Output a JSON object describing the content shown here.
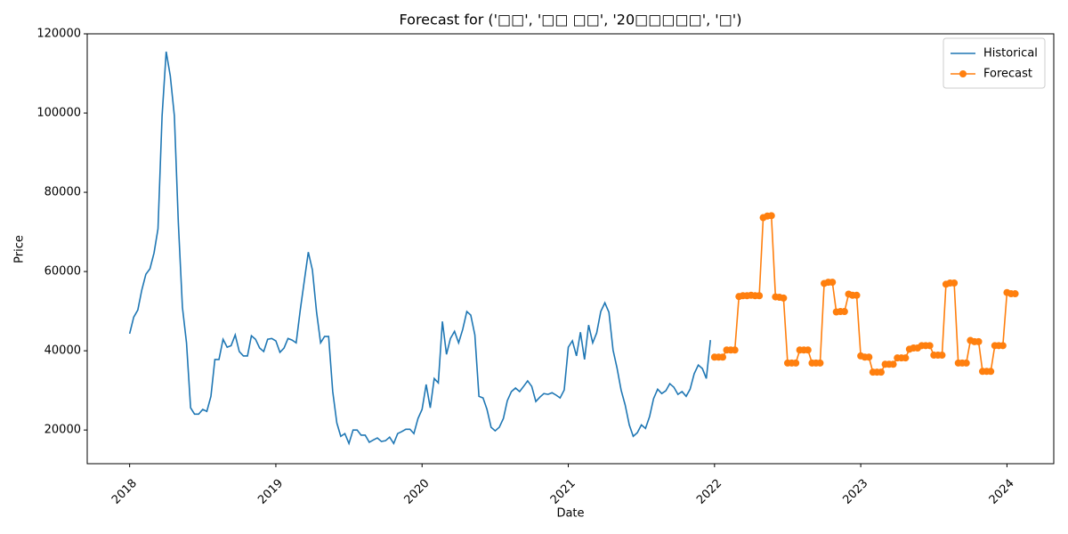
{
  "chart_data": {
    "type": "line",
    "title": "Forecast for ('□□', '□□ □□', '20□□□□□', '□')",
    "x_label": "Date",
    "y_label": "Price",
    "xlim": [
      2017.71,
      2024.32
    ],
    "xticks": [
      2018,
      2019,
      2020,
      2021,
      2022,
      2023,
      2024
    ],
    "ylim": [
      11500,
      120000
    ],
    "yticks": [
      20000,
      40000,
      60000,
      80000,
      100000,
      120000
    ],
    "grid": false,
    "legend": "upper right",
    "series": [
      {
        "name": "Historical",
        "color": "#1f77b4",
        "marker": false,
        "x": [
          2018,
          2018.028,
          2018.056,
          2018.083,
          2018.111,
          2018.139,
          2018.167,
          2018.194,
          2018.222,
          2018.25,
          2018.278,
          2018.306,
          2018.333,
          2018.361,
          2018.389,
          2018.417,
          2018.444,
          2018.472,
          2018.5,
          2018.528,
          2018.556,
          2018.583,
          2018.611,
          2018.639,
          2018.667,
          2018.694,
          2018.722,
          2018.75,
          2018.778,
          2018.806,
          2018.833,
          2018.861,
          2018.889,
          2018.917,
          2018.944,
          2018.972,
          2019,
          2019.028,
          2019.056,
          2019.083,
          2019.111,
          2019.139,
          2019.167,
          2019.194,
          2019.222,
          2019.25,
          2019.278,
          2019.306,
          2019.333,
          2019.361,
          2019.389,
          2019.417,
          2019.444,
          2019.472,
          2019.5,
          2019.528,
          2019.556,
          2019.583,
          2019.611,
          2019.639,
          2019.667,
          2019.694,
          2019.722,
          2019.75,
          2019.778,
          2019.806,
          2019.833,
          2019.861,
          2019.889,
          2019.917,
          2019.944,
          2019.972,
          2020,
          2020.028,
          2020.056,
          2020.083,
          2020.111,
          2020.139,
          2020.167,
          2020.194,
          2020.222,
          2020.25,
          2020.278,
          2020.306,
          2020.333,
          2020.361,
          2020.389,
          2020.417,
          2020.444,
          2020.472,
          2020.5,
          2020.528,
          2020.556,
          2020.583,
          2020.611,
          2020.639,
          2020.667,
          2020.694,
          2020.722,
          2020.75,
          2020.778,
          2020.806,
          2020.833,
          2020.861,
          2020.889,
          2020.917,
          2020.944,
          2020.972,
          2021,
          2021.028,
          2021.056,
          2021.083,
          2021.111,
          2021.139,
          2021.167,
          2021.194,
          2021.222,
          2021.25,
          2021.278,
          2021.306,
          2021.333,
          2021.361,
          2021.389,
          2021.417,
          2021.444,
          2021.472,
          2021.5,
          2021.528,
          2021.556,
          2021.583,
          2021.611,
          2021.639,
          2021.667,
          2021.694,
          2021.722,
          2021.75,
          2021.778,
          2021.806,
          2021.833,
          2021.861,
          2021.889,
          2021.917,
          2021.944,
          2021.972
        ],
        "values": [
          44300,
          48500,
          50300,
          55300,
          59300,
          60700,
          64700,
          70800,
          99300,
          115500,
          109400,
          99300,
          72400,
          51000,
          42000,
          25600,
          24000,
          24000,
          25200,
          24700,
          28500,
          37800,
          37800,
          42900,
          40900,
          41300,
          44000,
          39800,
          38700,
          38700,
          43800,
          42900,
          40700,
          39800,
          42900,
          43100,
          42500,
          39600,
          40700,
          43100,
          42700,
          42000,
          50300,
          57500,
          64900,
          60400,
          49900,
          42000,
          43600,
          43600,
          29700,
          21800,
          18400,
          19100,
          16600,
          20000,
          20000,
          18700,
          18700,
          16900,
          17500,
          18000,
          17100,
          17300,
          18200,
          16600,
          19100,
          19600,
          20200,
          20200,
          19100,
          22900,
          25200,
          31500,
          25600,
          33000,
          31900,
          47400,
          39100,
          43100,
          44900,
          42000,
          45400,
          49900,
          49000,
          44000,
          28500,
          28100,
          25200,
          20700,
          19800,
          20700,
          22900,
          27400,
          29700,
          30600,
          29700,
          31000,
          32400,
          31000,
          27200,
          28300,
          29200,
          29000,
          29400,
          28800,
          28100,
          30100,
          40900,
          42500,
          38700,
          44700,
          37800,
          46500,
          42000,
          44500,
          49900,
          52100,
          49700,
          40200,
          35700,
          30100,
          26300,
          21300,
          18400,
          19300,
          21300,
          20400,
          23400,
          27900,
          30300,
          29200,
          29900,
          31700,
          30800,
          29000,
          29700,
          28500,
          30300,
          34200,
          36400,
          35500,
          33000,
          42700
        ]
      },
      {
        "name": "Forecast",
        "color": "#ff7f0e",
        "marker": true,
        "x": [
          2022,
          2022.028,
          2022.056,
          2022.083,
          2022.111,
          2022.139,
          2022.167,
          2022.194,
          2022.222,
          2022.25,
          2022.278,
          2022.306,
          2022.333,
          2022.361,
          2022.389,
          2022.417,
          2022.444,
          2022.472,
          2022.5,
          2022.528,
          2022.556,
          2022.583,
          2022.611,
          2022.639,
          2022.667,
          2022.694,
          2022.722,
          2022.75,
          2022.778,
          2022.806,
          2022.833,
          2022.861,
          2022.889,
          2022.917,
          2022.944,
          2022.972,
          2023,
          2023.028,
          2023.056,
          2023.083,
          2023.111,
          2023.139,
          2023.167,
          2023.194,
          2023.222,
          2023.25,
          2023.278,
          2023.306,
          2023.333,
          2023.361,
          2023.389,
          2023.417,
          2023.444,
          2023.472,
          2023.5,
          2023.528,
          2023.556,
          2023.583,
          2023.611,
          2023.639,
          2023.667,
          2023.694,
          2023.722,
          2023.75,
          2023.778,
          2023.806,
          2023.833,
          2023.861,
          2023.889,
          2023.917,
          2023.944,
          2023.972,
          2024,
          2024.028,
          2024.056
        ],
        "values": [
          38400,
          38400,
          38400,
          40200,
          40200,
          40200,
          53700,
          53900,
          53900,
          54000,
          53900,
          53900,
          73600,
          74000,
          74100,
          53600,
          53500,
          53300,
          36900,
          36900,
          36900,
          40200,
          40200,
          40200,
          36900,
          36900,
          36900,
          57000,
          57300,
          57300,
          49800,
          49900,
          49900,
          54300,
          54000,
          54000,
          38700,
          38400,
          38400,
          34600,
          34600,
          34600,
          36600,
          36600,
          36600,
          38200,
          38200,
          38200,
          40400,
          40700,
          40700,
          41300,
          41300,
          41300,
          38900,
          38900,
          38900,
          56800,
          57100,
          57100,
          36900,
          36900,
          36900,
          42600,
          42300,
          42300,
          34800,
          34800,
          34800,
          41300,
          41300,
          41300,
          54700,
          54400,
          54400
        ]
      }
    ]
  }
}
